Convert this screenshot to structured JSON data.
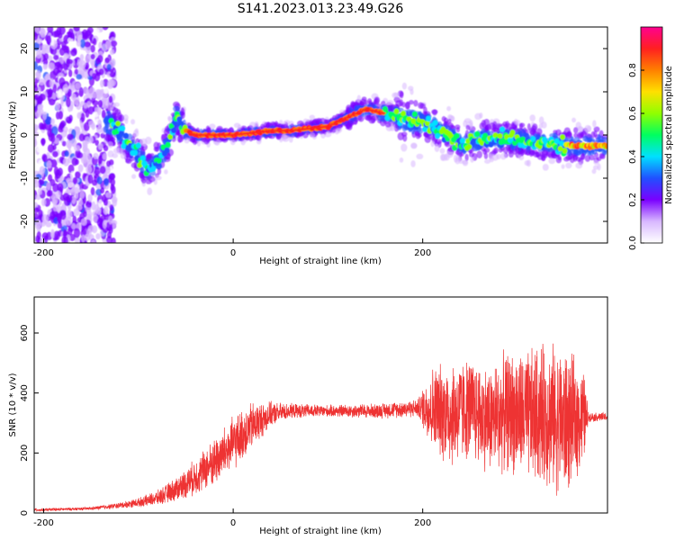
{
  "figure_title": "S141.2023.013.23.49.G26",
  "chart_data": [
    {
      "type": "heatmap",
      "xlabel": "Height of straight line (km)",
      "ylabel": "Frequency (Hz)",
      "xlim": [
        -210,
        395
      ],
      "ylim": [
        -25,
        25
      ],
      "x_ticks": [
        -200,
        0,
        200
      ],
      "y_ticks": [
        -20,
        -10,
        0,
        10,
        20
      ],
      "grid": false,
      "colorbar": {
        "label": "Normalized spectral amplitude",
        "range": [
          0,
          1
        ],
        "ticks": [
          "0.0",
          "0.2",
          "0.4",
          "0.6",
          "0.8"
        ],
        "colors": [
          "#ffffff",
          "#d8b8ff",
          "#7a00ff",
          "#2050ff",
          "#00e0ff",
          "#00ff60",
          "#90ff00",
          "#ffe000",
          "#ff8000",
          "#ff2020",
          "#ff0090"
        ]
      },
      "ridge": {
        "x": [
          -125,
          -110,
          -100,
          -90,
          -80,
          -70,
          -60,
          -50,
          -40,
          -20,
          0,
          20,
          40,
          60,
          80,
          100,
          120,
          140,
          160,
          180,
          200,
          220,
          240,
          260,
          280,
          300,
          320,
          340,
          360,
          380,
          395
        ],
        "y": [
          2,
          -2,
          -5,
          -8,
          -6,
          -3,
          4,
          1,
          0,
          0,
          0,
          0.5,
          1,
          1,
          1.5,
          2,
          4,
          6,
          5,
          4,
          3,
          1,
          -2,
          -1,
          -1,
          -1,
          -2,
          -2,
          -2.5,
          -2.5,
          -2.5
        ]
      }
    },
    {
      "type": "line",
      "xlabel": "Height of straight line (km)",
      "ylabel": "SNR (10 * v/v)",
      "xlim": [
        -210,
        395
      ],
      "ylim": [
        0,
        720
      ],
      "x_ticks": [
        -200,
        0,
        200
      ],
      "y_ticks": [
        0,
        200,
        400,
        600
      ],
      "grid": false,
      "series": [
        {
          "color": "#ee3333",
          "envelope": {
            "x": [
              -210,
              -150,
              -120,
              -100,
              -80,
              -60,
              -40,
              -20,
              0,
              20,
              40,
              60,
              100,
              150,
              195,
              210,
              230,
              250,
              270,
              290,
              310,
              330,
              350,
              370,
              375,
              390,
              395
            ],
            "mean": [
              10,
              15,
              25,
              35,
              50,
              80,
              120,
              170,
              230,
              290,
              330,
              340,
              340,
              340,
              350,
              350,
              330,
              350,
              310,
              340,
              320,
              330,
              300,
              320,
              320,
              320,
              320
            ],
            "amplitude": [
              5,
              5,
              10,
              15,
              25,
              40,
              60,
              80,
              90,
              80,
              40,
              25,
              20,
              25,
              30,
              140,
              180,
              170,
              180,
              200,
              220,
              240,
              250,
              160,
              15,
              15,
              15
            ]
          }
        }
      ]
    }
  ]
}
